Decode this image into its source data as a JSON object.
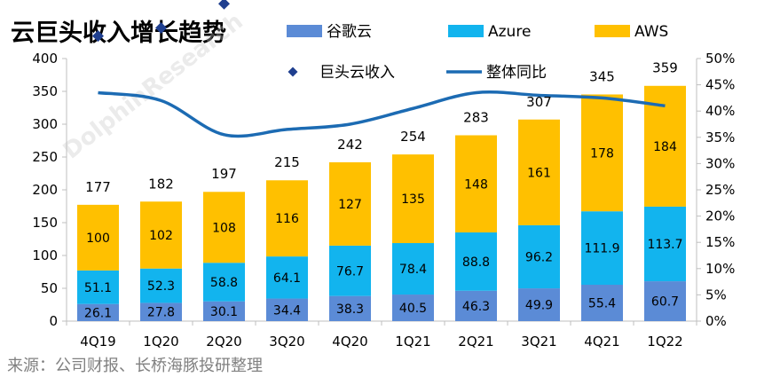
{
  "title": "云巨头收入增长趋势",
  "source": "来源：公司财报、长桥海豚投研整理",
  "watermark": "DolphinResearch",
  "colors": {
    "google": "#5b8bd6",
    "azure": "#12b4ee",
    "aws": "#ffc000",
    "total_marker": "#1f3f8f",
    "growth_line": "#1c6bb3"
  },
  "chart_data": {
    "type": "bar",
    "stacked": true,
    "categories": [
      "4Q19",
      "1Q20",
      "2Q20",
      "3Q20",
      "4Q20",
      "1Q21",
      "2Q21",
      "3Q21",
      "4Q21",
      "1Q22"
    ],
    "series": [
      {
        "name": "谷歌云",
        "values": [
          26.1,
          27.8,
          30.1,
          34.4,
          38.3,
          40.5,
          46.3,
          49.9,
          55.4,
          60.7
        ]
      },
      {
        "name": "Azure",
        "values": [
          51.1,
          52.3,
          58.8,
          64.1,
          76.7,
          78.4,
          88.8,
          96.2,
          111.9,
          113.7
        ]
      },
      {
        "name": "AWS",
        "values": [
          100,
          102,
          108,
          116,
          127,
          135,
          148,
          161,
          178,
          184
        ]
      }
    ],
    "totals": {
      "name": "巨头云收入",
      "values": [
        177,
        182,
        197,
        215,
        242,
        254,
        283,
        307,
        345,
        359
      ],
      "marker": "diamond"
    },
    "growth": {
      "name": "整体同比",
      "values": [
        0.435,
        0.42,
        0.355,
        0.365,
        0.375,
        0.405,
        0.435,
        0.43,
        0.425,
        0.41
      ],
      "axis": "right",
      "style": "smooth line"
    },
    "y_left": {
      "min": 0,
      "max": 400,
      "step": 50,
      "ticks": [
        "0",
        "50",
        "100",
        "150",
        "200",
        "250",
        "300",
        "350",
        "400"
      ]
    },
    "y_right": {
      "min": 0,
      "max": 0.5,
      "step": 0.05,
      "ticks": [
        "0%",
        "5%",
        "10%",
        "15%",
        "20%",
        "25%",
        "30%",
        "35%",
        "40%",
        "45%",
        "50%"
      ]
    },
    "legend": [
      "谷歌云",
      "Azure",
      "AWS",
      "巨头云收入",
      "整体同比"
    ],
    "legend_position": "top",
    "grid": false
  }
}
